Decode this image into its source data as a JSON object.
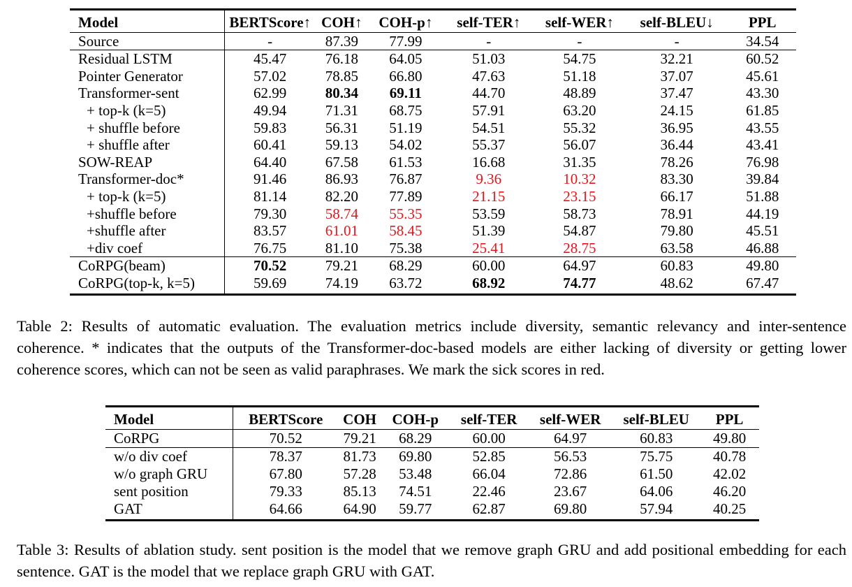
{
  "table2": {
    "headers": [
      "Model",
      "BERTScore↑",
      "COH↑",
      "COH-p↑",
      "self-TER↑",
      "self-WER↑",
      "self-BLEU↓",
      "PPL"
    ],
    "rows": [
      {
        "label": "Source",
        "indent": false,
        "sep": false,
        "cells": [
          {
            "v": "-"
          },
          {
            "v": "87.39"
          },
          {
            "v": "77.99"
          },
          {
            "v": "-"
          },
          {
            "v": "-"
          },
          {
            "v": "-"
          },
          {
            "v": "34.54"
          }
        ]
      },
      {
        "label": "Residual LSTM",
        "indent": false,
        "sep": true,
        "cells": [
          {
            "v": "45.47"
          },
          {
            "v": "76.18"
          },
          {
            "v": "64.05"
          },
          {
            "v": "51.03"
          },
          {
            "v": "54.75"
          },
          {
            "v": "32.21"
          },
          {
            "v": "60.52"
          }
        ]
      },
      {
        "label": "Pointer Generator",
        "indent": false,
        "sep": false,
        "cells": [
          {
            "v": "57.02"
          },
          {
            "v": "78.85"
          },
          {
            "v": "66.80"
          },
          {
            "v": "47.63"
          },
          {
            "v": "51.18"
          },
          {
            "v": "37.07"
          },
          {
            "v": "45.61"
          }
        ]
      },
      {
        "label": "Transformer-sent",
        "indent": false,
        "sep": false,
        "cells": [
          {
            "v": "62.99"
          },
          {
            "v": "80.34",
            "style": "bold"
          },
          {
            "v": "69.11",
            "style": "bold"
          },
          {
            "v": "44.70"
          },
          {
            "v": "48.89"
          },
          {
            "v": "37.47"
          },
          {
            "v": "43.30"
          }
        ]
      },
      {
        "label": "+ top-k (k=5)",
        "indent": true,
        "sep": false,
        "cells": [
          {
            "v": "49.94"
          },
          {
            "v": "71.31"
          },
          {
            "v": "68.75"
          },
          {
            "v": "57.91"
          },
          {
            "v": "63.20"
          },
          {
            "v": "24.15"
          },
          {
            "v": "61.85"
          }
        ]
      },
      {
        "label": "+ shuffle before",
        "indent": true,
        "sep": false,
        "cells": [
          {
            "v": "59.83"
          },
          {
            "v": "56.31"
          },
          {
            "v": "51.19"
          },
          {
            "v": "54.51"
          },
          {
            "v": "55.32"
          },
          {
            "v": "36.95"
          },
          {
            "v": "43.55"
          }
        ]
      },
      {
        "label": "+ shuffle after",
        "indent": true,
        "sep": false,
        "cells": [
          {
            "v": "60.41"
          },
          {
            "v": "59.13"
          },
          {
            "v": "54.02"
          },
          {
            "v": "55.37"
          },
          {
            "v": "56.07"
          },
          {
            "v": "36.44"
          },
          {
            "v": "43.41"
          }
        ]
      },
      {
        "label": "SOW-REAP",
        "indent": false,
        "sep": false,
        "cells": [
          {
            "v": "64.40"
          },
          {
            "v": "67.58"
          },
          {
            "v": "61.53"
          },
          {
            "v": "16.68"
          },
          {
            "v": "31.35"
          },
          {
            "v": "78.26"
          },
          {
            "v": "76.98"
          }
        ]
      },
      {
        "label": "Transformer-doc*",
        "indent": false,
        "sep": false,
        "cells": [
          {
            "v": "91.46"
          },
          {
            "v": "86.93"
          },
          {
            "v": "76.87"
          },
          {
            "v": "9.36",
            "style": "red"
          },
          {
            "v": "10.32",
            "style": "red"
          },
          {
            "v": "83.30"
          },
          {
            "v": "39.84"
          }
        ]
      },
      {
        "label": "+ top-k (k=5)",
        "indent": true,
        "sep": false,
        "cells": [
          {
            "v": "81.14"
          },
          {
            "v": "82.20"
          },
          {
            "v": "77.89"
          },
          {
            "v": "21.15",
            "style": "red"
          },
          {
            "v": "23.15",
            "style": "red"
          },
          {
            "v": "66.17"
          },
          {
            "v": "51.88"
          }
        ]
      },
      {
        "label": "+shuffle before",
        "indent": true,
        "sep": false,
        "cells": [
          {
            "v": "79.30"
          },
          {
            "v": "58.74",
            "style": "red"
          },
          {
            "v": "55.35",
            "style": "red"
          },
          {
            "v": "53.59"
          },
          {
            "v": "58.73"
          },
          {
            "v": "78.91"
          },
          {
            "v": "44.19"
          }
        ]
      },
      {
        "label": "+shuffle after",
        "indent": true,
        "sep": false,
        "cells": [
          {
            "v": "83.57"
          },
          {
            "v": "61.01",
            "style": "red"
          },
          {
            "v": "58.45",
            "style": "red"
          },
          {
            "v": "51.39"
          },
          {
            "v": "54.87"
          },
          {
            "v": "79.80"
          },
          {
            "v": "45.51"
          }
        ]
      },
      {
        "label": "+div coef",
        "indent": true,
        "sep": false,
        "cells": [
          {
            "v": "76.75"
          },
          {
            "v": "81.10"
          },
          {
            "v": "75.38"
          },
          {
            "v": "25.41",
            "style": "red"
          },
          {
            "v": "28.75",
            "style": "red"
          },
          {
            "v": "63.58"
          },
          {
            "v": "46.88"
          }
        ]
      },
      {
        "label": "CoRPG(beam)",
        "indent": false,
        "sep": true,
        "cells": [
          {
            "v": "70.52",
            "style": "bold"
          },
          {
            "v": "79.21"
          },
          {
            "v": "68.29"
          },
          {
            "v": "60.00"
          },
          {
            "v": "64.97"
          },
          {
            "v": "60.83"
          },
          {
            "v": "49.80"
          }
        ]
      },
      {
        "label": "CoRPG(top-k, k=5)",
        "indent": false,
        "sep": false,
        "cells": [
          {
            "v": "59.69"
          },
          {
            "v": "74.19"
          },
          {
            "v": "63.72"
          },
          {
            "v": "68.92",
            "style": "bold"
          },
          {
            "v": "74.77",
            "style": "bold"
          },
          {
            "v": "48.62"
          },
          {
            "v": "67.47"
          }
        ]
      }
    ],
    "caption": "Table 2:  Results of automatic evaluation. The evaluation metrics include diversity, semantic relevancy and inter-sentence coherence. * indicates that the outputs of the Transformer-doc-based models are either lacking of diversity or getting lower coherence scores, which can not be seen as valid paraphrases. We mark the sick scores in red."
  },
  "table3": {
    "headers": [
      "Model",
      "BERTScore",
      "COH",
      "COH-p",
      "self-TER",
      "self-WER",
      "self-BLEU",
      "PPL"
    ],
    "rows": [
      {
        "label": "CoRPG",
        "sep": false,
        "cells": [
          "70.52",
          "79.21",
          "68.29",
          "60.00",
          "64.97",
          "60.83",
          "49.80"
        ]
      },
      {
        "label": "w/o div coef",
        "sep": true,
        "cells": [
          "78.37",
          "81.73",
          "69.80",
          "52.85",
          "56.53",
          "75.75",
          "40.78"
        ]
      },
      {
        "label": "w/o graph GRU",
        "sep": false,
        "cells": [
          "67.80",
          "57.28",
          "53.48",
          "66.04",
          "72.86",
          "61.50",
          "42.02"
        ]
      },
      {
        "label": "sent position",
        "sep": false,
        "cells": [
          "79.33",
          "85.13",
          "74.51",
          "22.46",
          "23.67",
          "64.06",
          "46.20"
        ]
      },
      {
        "label": "GAT",
        "sep": false,
        "cells": [
          "64.66",
          "64.90",
          "59.77",
          "62.87",
          "69.80",
          "57.94",
          "40.25"
        ]
      }
    ],
    "caption": "Table 3:  Results of ablation study.  sent position is the model that we remove graph GRU and add positional embedding for each sentence. GAT is the model that we replace graph GRU with GAT."
  },
  "colors": {
    "highlight_red": "#e8141b"
  }
}
